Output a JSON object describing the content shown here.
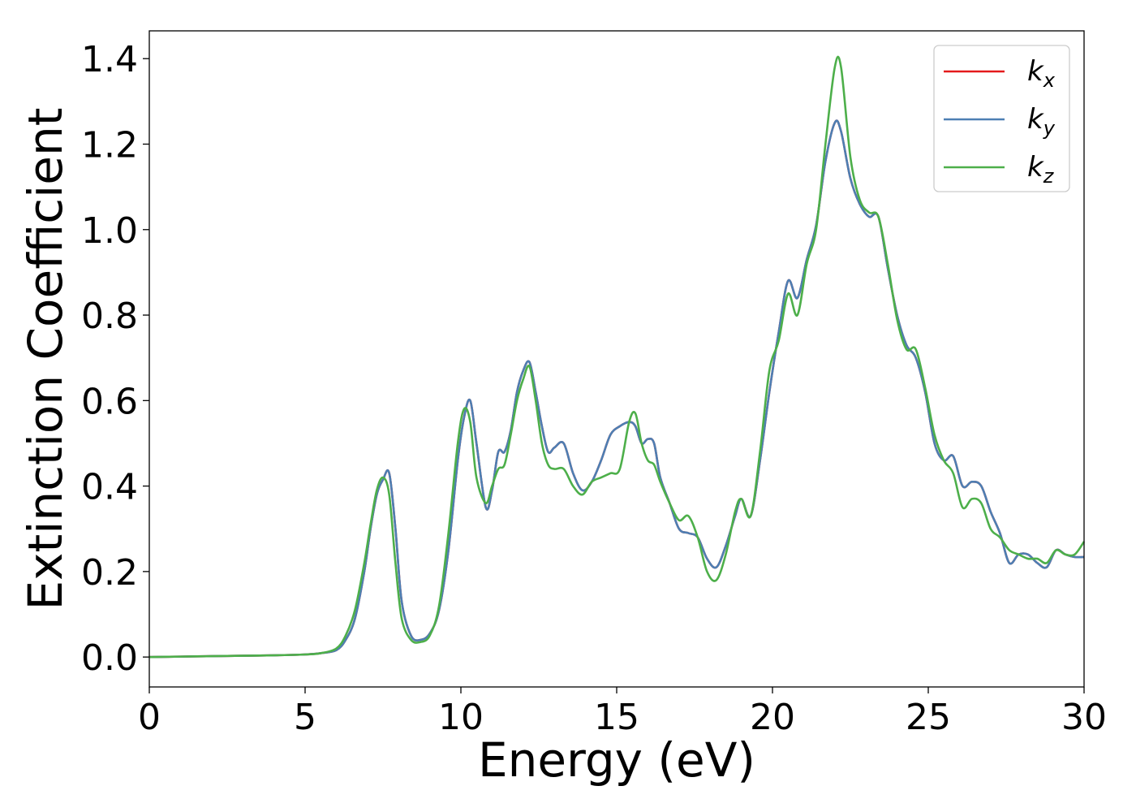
{
  "chart_data": {
    "type": "line",
    "title": "",
    "xlabel": "Energy (eV)",
    "ylabel": "Extinction Coefficient",
    "xlim": [
      0,
      30
    ],
    "ylim": [
      -0.07,
      1.465
    ],
    "xticks": [
      0,
      5,
      10,
      15,
      20,
      25,
      30
    ],
    "xtick_labels": [
      "0",
      "5",
      "10",
      "15",
      "20",
      "25",
      "30"
    ],
    "yticks": [
      0.0,
      0.2,
      0.4,
      0.6,
      0.8,
      1.0,
      1.2,
      1.4
    ],
    "ytick_labels": [
      "0.0",
      "0.2",
      "0.4",
      "0.6",
      "0.8",
      "1.0",
      "1.2",
      "1.4"
    ],
    "grid": false,
    "legend_position": "top-right",
    "series": [
      {
        "name": "k_x",
        "legend_main": "k",
        "legend_sub": "x",
        "color": "#e41a1c",
        "x": [
          0,
          1,
          2,
          3,
          4,
          5,
          5.5,
          6,
          6.3,
          6.6,
          6.9,
          7.1,
          7.3,
          7.5,
          7.7,
          7.9,
          8.1,
          8.4,
          8.7,
          9.0,
          9.3,
          9.6,
          9.9,
          10.1,
          10.3,
          10.5,
          10.8,
          11.0,
          11.2,
          11.4,
          11.6,
          11.8,
          12.0,
          12.2,
          12.4,
          12.6,
          12.8,
          13.0,
          13.3,
          13.6,
          13.9,
          14.2,
          14.5,
          14.8,
          15.1,
          15.4,
          15.6,
          15.8,
          16.0,
          16.2,
          16.4,
          16.7,
          17.0,
          17.3,
          17.6,
          17.9,
          18.2,
          18.5,
          18.8,
          19.0,
          19.3,
          19.6,
          19.9,
          20.2,
          20.5,
          20.8,
          21.1,
          21.4,
          21.7,
          22.0,
          22.2,
          22.5,
          22.8,
          23.1,
          23.4,
          23.7,
          24.0,
          24.3,
          24.6,
          24.9,
          25.2,
          25.5,
          25.8,
          26.1,
          26.4,
          26.7,
          27.0,
          27.3,
          27.6,
          27.9,
          28.2,
          28.5,
          28.8,
          29.1,
          29.4,
          29.7,
          30
        ],
        "y": [
          0.0,
          0.001,
          0.002,
          0.003,
          0.004,
          0.006,
          0.009,
          0.016,
          0.04,
          0.09,
          0.2,
          0.3,
          0.38,
          0.415,
          0.43,
          0.3,
          0.13,
          0.05,
          0.04,
          0.055,
          0.11,
          0.25,
          0.46,
          0.56,
          0.6,
          0.5,
          0.35,
          0.39,
          0.48,
          0.48,
          0.53,
          0.62,
          0.67,
          0.69,
          0.62,
          0.54,
          0.48,
          0.49,
          0.5,
          0.43,
          0.39,
          0.41,
          0.46,
          0.52,
          0.54,
          0.55,
          0.54,
          0.5,
          0.51,
          0.5,
          0.42,
          0.36,
          0.3,
          0.29,
          0.28,
          0.23,
          0.21,
          0.26,
          0.33,
          0.37,
          0.33,
          0.46,
          0.62,
          0.76,
          0.88,
          0.84,
          0.93,
          1.01,
          1.16,
          1.25,
          1.23,
          1.12,
          1.06,
          1.03,
          1.03,
          0.91,
          0.8,
          0.73,
          0.7,
          0.62,
          0.5,
          0.46,
          0.47,
          0.4,
          0.41,
          0.4,
          0.34,
          0.29,
          0.22,
          0.24,
          0.24,
          0.22,
          0.21,
          0.25,
          0.24,
          0.234,
          0.234
        ]
      },
      {
        "name": "k_y",
        "legend_main": "k",
        "legend_sub": "y",
        "color": "#4d7fb3",
        "x": [
          0,
          1,
          2,
          3,
          4,
          5,
          5.5,
          6,
          6.3,
          6.6,
          6.9,
          7.1,
          7.3,
          7.5,
          7.7,
          7.9,
          8.1,
          8.4,
          8.7,
          9.0,
          9.3,
          9.6,
          9.9,
          10.1,
          10.3,
          10.5,
          10.8,
          11.0,
          11.2,
          11.4,
          11.6,
          11.8,
          12.0,
          12.2,
          12.4,
          12.6,
          12.8,
          13.0,
          13.3,
          13.6,
          13.9,
          14.2,
          14.5,
          14.8,
          15.1,
          15.4,
          15.6,
          15.8,
          16.0,
          16.2,
          16.4,
          16.7,
          17.0,
          17.3,
          17.6,
          17.9,
          18.2,
          18.5,
          18.8,
          19.0,
          19.3,
          19.6,
          19.9,
          20.2,
          20.5,
          20.8,
          21.1,
          21.4,
          21.7,
          22.0,
          22.2,
          22.5,
          22.8,
          23.1,
          23.4,
          23.7,
          24.0,
          24.3,
          24.6,
          24.9,
          25.2,
          25.5,
          25.8,
          26.1,
          26.4,
          26.7,
          27.0,
          27.3,
          27.6,
          27.9,
          28.2,
          28.5,
          28.8,
          29.1,
          29.4,
          29.7,
          30
        ],
        "y": [
          0.0,
          0.001,
          0.002,
          0.003,
          0.004,
          0.006,
          0.009,
          0.016,
          0.04,
          0.09,
          0.2,
          0.3,
          0.38,
          0.415,
          0.43,
          0.3,
          0.13,
          0.05,
          0.04,
          0.055,
          0.11,
          0.25,
          0.46,
          0.56,
          0.6,
          0.5,
          0.35,
          0.39,
          0.48,
          0.48,
          0.53,
          0.62,
          0.67,
          0.69,
          0.62,
          0.54,
          0.48,
          0.49,
          0.5,
          0.43,
          0.39,
          0.41,
          0.46,
          0.52,
          0.54,
          0.55,
          0.54,
          0.5,
          0.51,
          0.5,
          0.42,
          0.36,
          0.3,
          0.29,
          0.28,
          0.23,
          0.21,
          0.26,
          0.33,
          0.37,
          0.33,
          0.46,
          0.62,
          0.76,
          0.88,
          0.84,
          0.93,
          1.01,
          1.16,
          1.25,
          1.23,
          1.12,
          1.06,
          1.03,
          1.03,
          0.91,
          0.8,
          0.73,
          0.7,
          0.62,
          0.5,
          0.46,
          0.47,
          0.4,
          0.41,
          0.4,
          0.34,
          0.29,
          0.22,
          0.24,
          0.24,
          0.22,
          0.21,
          0.25,
          0.24,
          0.234,
          0.234
        ]
      },
      {
        "name": "k_z",
        "legend_main": "k",
        "legend_sub": "z",
        "color": "#4daf4a",
        "x": [
          0,
          1,
          2,
          3,
          4,
          5,
          5.5,
          6,
          6.3,
          6.6,
          6.9,
          7.1,
          7.3,
          7.5,
          7.7,
          7.9,
          8.1,
          8.4,
          8.7,
          9.0,
          9.3,
          9.6,
          9.9,
          10.1,
          10.3,
          10.5,
          10.8,
          11.0,
          11.2,
          11.4,
          11.6,
          11.8,
          12.0,
          12.2,
          12.4,
          12.6,
          12.8,
          13.0,
          13.3,
          13.6,
          13.9,
          14.2,
          14.5,
          14.8,
          15.1,
          15.4,
          15.6,
          15.8,
          16.0,
          16.2,
          16.4,
          16.7,
          17.0,
          17.3,
          17.6,
          17.9,
          18.2,
          18.5,
          18.8,
          19.0,
          19.3,
          19.6,
          19.9,
          20.2,
          20.5,
          20.8,
          21.1,
          21.4,
          21.7,
          22.0,
          22.2,
          22.5,
          22.8,
          23.1,
          23.4,
          23.7,
          24.0,
          24.3,
          24.6,
          24.9,
          25.2,
          25.5,
          25.8,
          26.1,
          26.4,
          26.7,
          27.0,
          27.3,
          27.6,
          27.9,
          28.2,
          28.5,
          28.8,
          29.1,
          29.4,
          29.7,
          30
        ],
        "y": [
          0.0,
          0.001,
          0.002,
          0.003,
          0.004,
          0.006,
          0.009,
          0.02,
          0.05,
          0.11,
          0.22,
          0.31,
          0.39,
          0.42,
          0.38,
          0.22,
          0.09,
          0.04,
          0.035,
          0.05,
          0.12,
          0.29,
          0.5,
          0.58,
          0.55,
          0.42,
          0.36,
          0.4,
          0.44,
          0.45,
          0.52,
          0.6,
          0.65,
          0.68,
          0.6,
          0.5,
          0.45,
          0.44,
          0.44,
          0.4,
          0.38,
          0.41,
          0.42,
          0.43,
          0.44,
          0.55,
          0.57,
          0.5,
          0.46,
          0.45,
          0.41,
          0.36,
          0.32,
          0.33,
          0.28,
          0.2,
          0.18,
          0.24,
          0.34,
          0.37,
          0.33,
          0.48,
          0.67,
          0.74,
          0.85,
          0.8,
          0.92,
          1.0,
          1.2,
          1.38,
          1.38,
          1.17,
          1.07,
          1.04,
          1.03,
          0.92,
          0.79,
          0.72,
          0.72,
          0.63,
          0.52,
          0.46,
          0.43,
          0.35,
          0.37,
          0.36,
          0.3,
          0.28,
          0.25,
          0.24,
          0.23,
          0.23,
          0.22,
          0.25,
          0.24,
          0.24,
          0.27
        ]
      }
    ]
  }
}
